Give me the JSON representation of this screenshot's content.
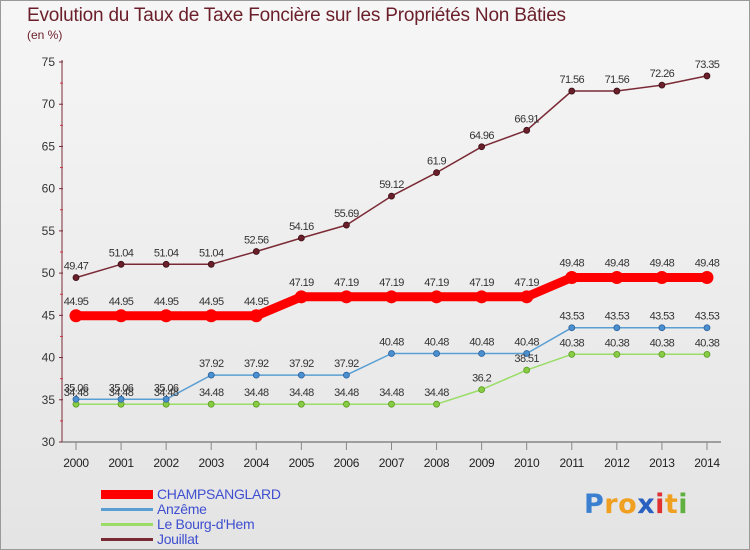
{
  "chart_data": {
    "type": "line",
    "title": "Evolution du Taux de Taxe Foncière sur les Propriétés Non Bâties",
    "subtitle": "(en %)",
    "xlabel": "",
    "ylabel": "",
    "x": [
      "2000",
      "2001",
      "2002",
      "2003",
      "2004",
      "2005",
      "2006",
      "2007",
      "2008",
      "2009",
      "2010",
      "2011",
      "2012",
      "2013",
      "2014"
    ],
    "ylim": [
      30,
      75
    ],
    "yticks": [
      "30",
      "35",
      "40",
      "45",
      "50",
      "55",
      "60",
      "65",
      "70",
      "75"
    ],
    "grid": false,
    "legend_position": "bottom-left",
    "series": [
      {
        "name": "CHAMPSANGLARD",
        "color": "#ff0000",
        "values": [
          44.95,
          44.95,
          44.95,
          44.95,
          44.95,
          47.19,
          47.19,
          47.19,
          47.19,
          47.19,
          47.19,
          49.48,
          49.48,
          49.48,
          49.48
        ],
        "labels": [
          "44.95",
          "44.95",
          "44.95",
          "44.95",
          "44.95",
          "47.19",
          "47.19",
          "47.19",
          "47.19",
          "47.19",
          "47.19",
          "49.48",
          "49.48",
          "49.48",
          "49.48"
        ]
      },
      {
        "name": "Anzême",
        "color": "#5a9fd4",
        "values": [
          35.06,
          35.06,
          35.06,
          37.92,
          37.92,
          37.92,
          37.92,
          40.48,
          40.48,
          40.48,
          40.48,
          43.53,
          43.53,
          43.53,
          43.53
        ],
        "labels": [
          "35.06",
          "35.06",
          "35.06",
          "37.92",
          "37.92",
          "37.92",
          "37.92",
          "40.48",
          "40.48",
          "40.48",
          "40.48",
          "43.53",
          "43.53",
          "43.53",
          "43.53"
        ]
      },
      {
        "name": "Le Bourg-d'Hem",
        "color": "#99dd66",
        "values": [
          34.48,
          34.48,
          34.48,
          34.48,
          34.48,
          34.48,
          34.48,
          34.48,
          34.48,
          36.2,
          38.51,
          40.38,
          40.38,
          40.38,
          40.38
        ],
        "labels": [
          "34.48",
          "34.48",
          "34.48",
          "34.48",
          "34.48",
          "34.48",
          "34.48",
          "34.48",
          "34.48",
          "36.2",
          "38.51",
          "40.38",
          "40.38",
          "40.38",
          "40.38"
        ]
      },
      {
        "name": "Jouillat",
        "color": "#7a2a35",
        "values": [
          49.47,
          51.04,
          51.04,
          51.04,
          52.56,
          54.16,
          55.69,
          59.12,
          61.9,
          64.96,
          66.91,
          71.56,
          71.56,
          72.26,
          73.35
        ],
        "labels": [
          "49.47",
          "51.04",
          "51.04",
          "51.04",
          "52.56",
          "54.16",
          "55.69",
          "59.12",
          "61.9",
          "64.96",
          "66.91",
          "71.56",
          "71.56",
          "72.26",
          "73.35"
        ]
      }
    ]
  },
  "brand": {
    "text": "Proxiti",
    "letters": [
      "P",
      "r",
      "o",
      "x",
      "i",
      "t",
      "i"
    ],
    "colors": [
      "#3a7fd0",
      "#f0a020",
      "#f0a020",
      "#2a60c0",
      "#e03030",
      "#f0a020",
      "#60b040"
    ]
  }
}
